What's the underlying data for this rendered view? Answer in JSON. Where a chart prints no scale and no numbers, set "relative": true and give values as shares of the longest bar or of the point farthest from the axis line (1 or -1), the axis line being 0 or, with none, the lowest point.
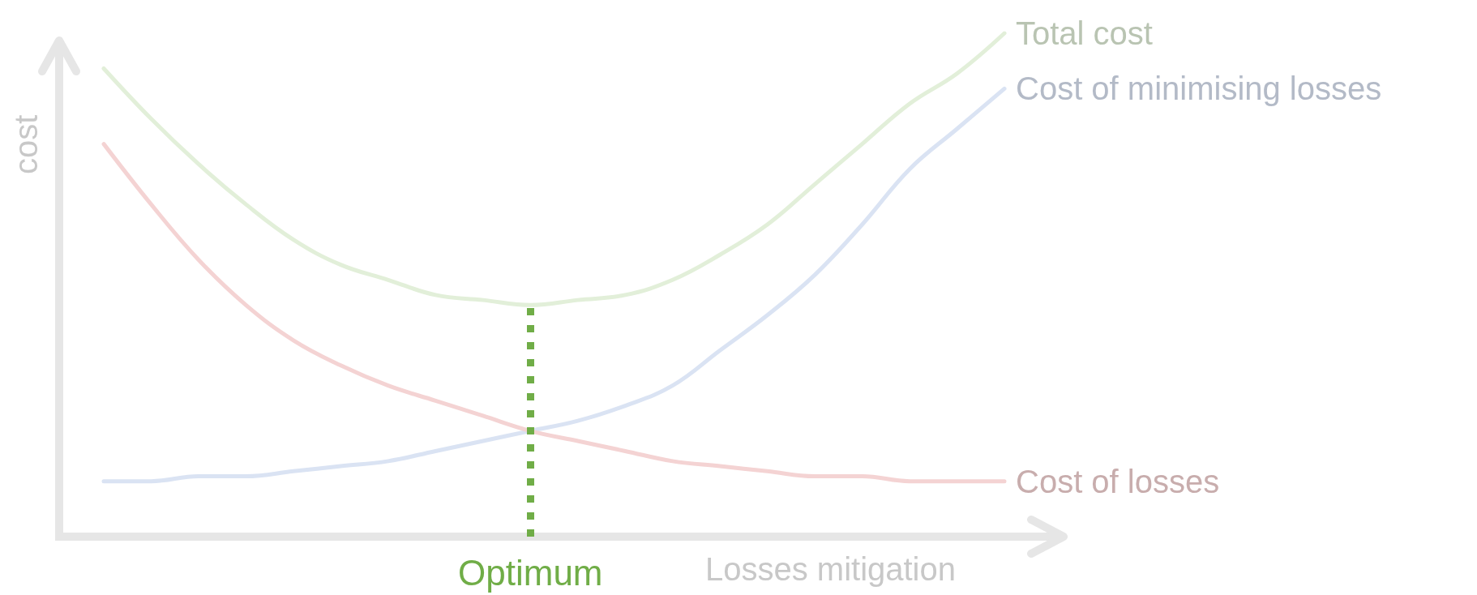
{
  "chart_data": {
    "type": "line",
    "relative": true,
    "xlabel": "Losses mitigation",
    "ylabel": "cost",
    "grid": false,
    "legend": false,
    "marker": "none",
    "line_style": "solid",
    "categories": [
      null,
      null,
      null,
      null,
      null,
      null,
      null,
      null,
      null,
      null,
      null,
      null,
      null,
      null,
      null,
      null,
      null,
      null,
      null,
      null
    ],
    "series": [
      {
        "name": "Total cost",
        "color": "#e2efd9",
        "values": [
          0.93,
          0.83,
          0.74,
          0.66,
          0.59,
          0.54,
          0.51,
          0.48,
          0.47,
          0.46,
          0.47,
          0.48,
          0.51,
          0.56,
          0.62,
          0.7,
          0.78,
          0.86,
          0.92,
          1
        ]
      },
      {
        "name": "Cost of minimising losses",
        "color": "#dae3f3",
        "values": [
          0.11,
          0.11,
          0.12,
          0.12,
          0.13,
          0.14,
          0.15,
          0.17,
          0.19,
          0.21,
          0.23,
          0.26,
          0.3,
          0.37,
          0.44,
          0.52,
          0.62,
          0.73,
          0.81,
          0.89
        ]
      },
      {
        "name": "Cost of losses",
        "color": "#f4d3d3",
        "values": [
          0.78,
          0.66,
          0.55,
          0.46,
          0.39,
          0.34,
          0.3,
          0.27,
          0.24,
          0.21,
          0.19,
          0.17,
          0.15,
          0.14,
          0.13,
          0.12,
          0.12,
          0.11,
          0.11,
          0.11
        ]
      }
    ],
    "annotations": [
      "Optimum"
    ]
  }
}
